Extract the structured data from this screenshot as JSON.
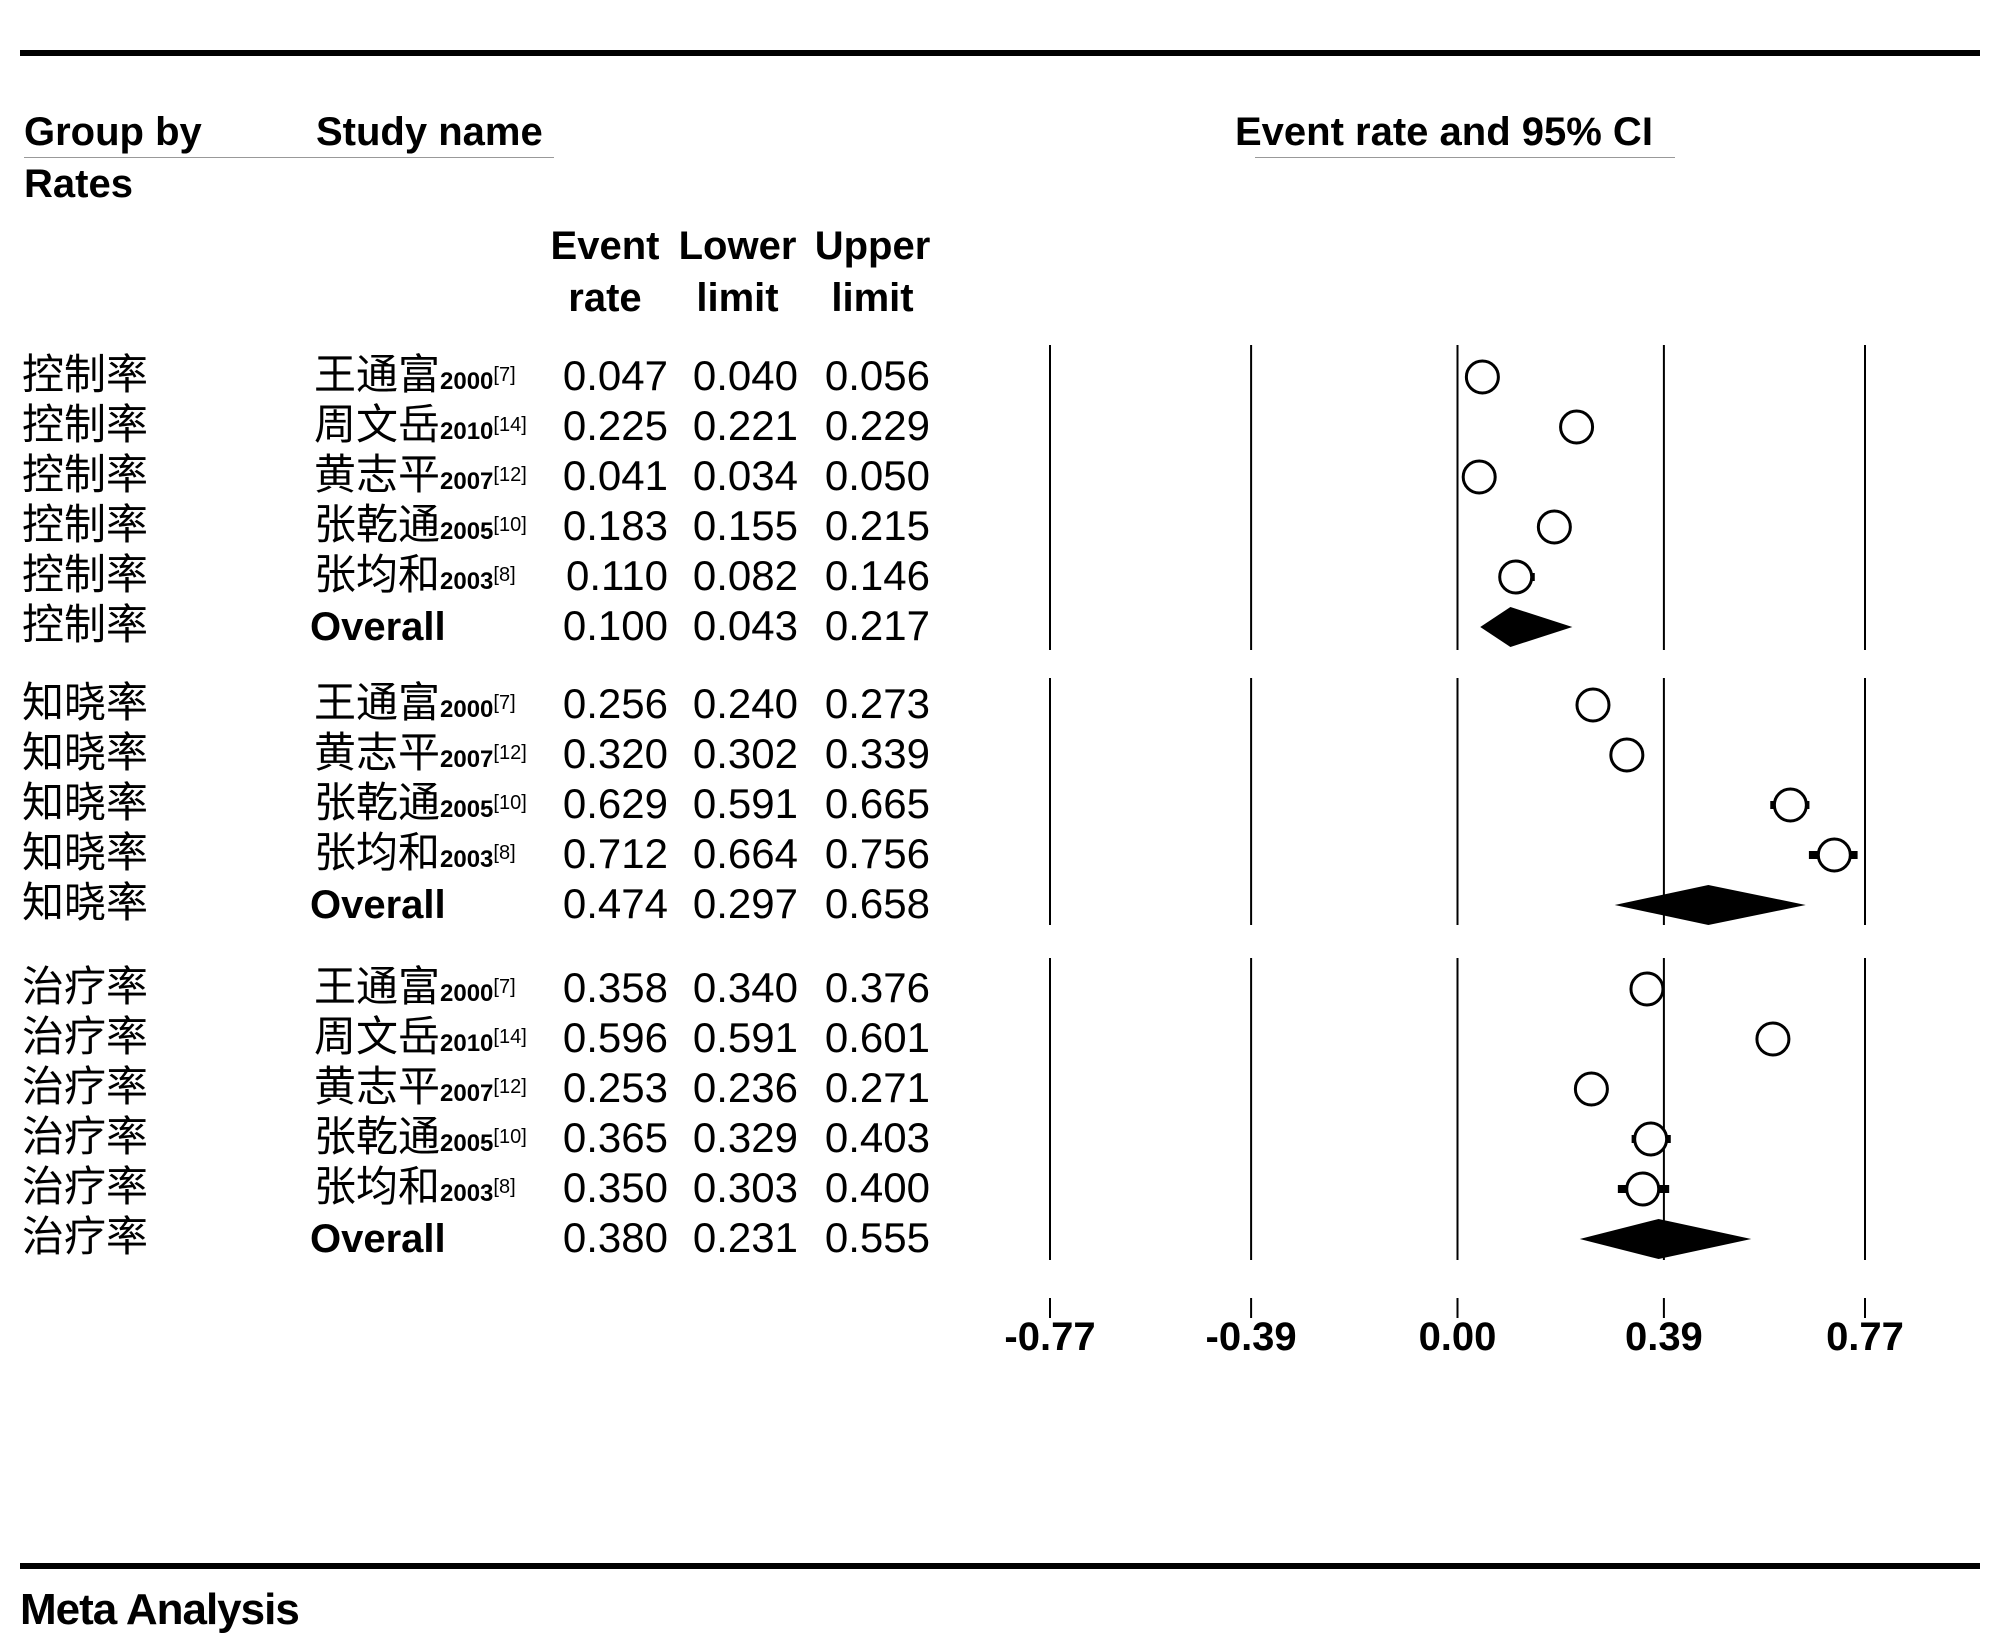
{
  "headers": {
    "group_line1": "Group by",
    "group_line2": "Rates",
    "study": "Study name",
    "plot": "Event rate and 95% CI",
    "col_event": [
      "Event",
      "rate"
    ],
    "col_lower": [
      "Lower",
      "limit"
    ],
    "col_upper": [
      "Upper",
      "limit"
    ]
  },
  "footer": "Meta Analysis",
  "chart_data": {
    "type": "forest",
    "xlim": [
      -0.77,
      0.77
    ],
    "xticks": [
      "-0.77",
      "-0.39",
      "0.00",
      "0.39",
      "0.77"
    ],
    "tick_values": [
      -0.77,
      -0.39,
      0.0,
      0.39,
      0.77
    ],
    "groups": [
      {
        "name": "控制率",
        "rows": [
          {
            "group": "控制率",
            "study": "王通富",
            "year": "2000",
            "ref": "[7]",
            "rate": "0.047",
            "lower": "0.040",
            "upper": "0.056",
            "r": 0.047,
            "l": 0.04,
            "u": 0.056,
            "overall": false
          },
          {
            "group": "控制率",
            "study": "周文岳",
            "year": "2010",
            "ref": "[14]",
            "rate": "0.225",
            "lower": "0.221",
            "upper": "0.229",
            "r": 0.225,
            "l": 0.221,
            "u": 0.229,
            "overall": false
          },
          {
            "group": "控制率",
            "study": "黄志平",
            "year": "2007",
            "ref": "[12]",
            "rate": "0.041",
            "lower": "0.034",
            "upper": "0.050",
            "r": 0.041,
            "l": 0.034,
            "u": 0.05,
            "overall": false
          },
          {
            "group": "控制率",
            "study": "张乾通",
            "year": "2005",
            "ref": "[10]",
            "rate": "0.183",
            "lower": "0.155",
            "upper": "0.215",
            "r": 0.183,
            "l": 0.155,
            "u": 0.215,
            "overall": false
          },
          {
            "group": "控制率",
            "study": "张均和",
            "year": "2003",
            "ref": "[8]",
            "rate": "0.110",
            "lower": "0.082",
            "upper": "0.146",
            "r": 0.11,
            "l": 0.082,
            "u": 0.146,
            "overall": false
          },
          {
            "group": "控制率",
            "study": "Overall",
            "year": "",
            "ref": "",
            "rate": "0.100",
            "lower": "0.043",
            "upper": "0.217",
            "r": 0.1,
            "l": 0.043,
            "u": 0.217,
            "overall": true
          }
        ]
      },
      {
        "name": "知晓率",
        "rows": [
          {
            "group": "知晓率",
            "study": "王通富",
            "year": "2000",
            "ref": "[7]",
            "rate": "0.256",
            "lower": "0.240",
            "upper": "0.273",
            "r": 0.256,
            "l": 0.24,
            "u": 0.273,
            "overall": false
          },
          {
            "group": "知晓率",
            "study": "黄志平",
            "year": "2007",
            "ref": "[12]",
            "rate": "0.320",
            "lower": "0.302",
            "upper": "0.339",
            "r": 0.32,
            "l": 0.302,
            "u": 0.339,
            "overall": false
          },
          {
            "group": "知晓率",
            "study": "张乾通",
            "year": "2005",
            "ref": "[10]",
            "rate": "0.629",
            "lower": "0.591",
            "upper": "0.665",
            "r": 0.629,
            "l": 0.591,
            "u": 0.665,
            "overall": false
          },
          {
            "group": "知晓率",
            "study": "张均和",
            "year": "2003",
            "ref": "[8]",
            "rate": "0.712",
            "lower": "0.664",
            "upper": "0.756",
            "r": 0.712,
            "l": 0.664,
            "u": 0.756,
            "overall": false
          },
          {
            "group": "知晓率",
            "study": "Overall",
            "year": "",
            "ref": "",
            "rate": "0.474",
            "lower": "0.297",
            "upper": "0.658",
            "r": 0.474,
            "l": 0.297,
            "u": 0.658,
            "overall": true
          }
        ]
      },
      {
        "name": "治疗率",
        "rows": [
          {
            "group": "治疗率",
            "study": "王通富",
            "year": "2000",
            "ref": "[7]",
            "rate": "0.358",
            "lower": "0.340",
            "upper": "0.376",
            "r": 0.358,
            "l": 0.34,
            "u": 0.376,
            "overall": false
          },
          {
            "group": "治疗率",
            "study": "周文岳",
            "year": "2010",
            "ref": "[14]",
            "rate": "0.596",
            "lower": "0.591",
            "upper": "0.601",
            "r": 0.596,
            "l": 0.591,
            "u": 0.601,
            "overall": false
          },
          {
            "group": "治疗率",
            "study": "黄志平",
            "year": "2007",
            "ref": "[12]",
            "rate": "0.253",
            "lower": "0.236",
            "upper": "0.271",
            "r": 0.253,
            "l": 0.236,
            "u": 0.271,
            "overall": false
          },
          {
            "group": "治疗率",
            "study": "张乾通",
            "year": "2005",
            "ref": "[10]",
            "rate": "0.365",
            "lower": "0.329",
            "upper": "0.403",
            "r": 0.365,
            "l": 0.329,
            "u": 0.403,
            "overall": false
          },
          {
            "group": "治疗率",
            "study": "张均和",
            "year": "2003",
            "ref": "[8]",
            "rate": "0.350",
            "lower": "0.303",
            "upper": "0.400",
            "r": 0.35,
            "l": 0.303,
            "u": 0.4,
            "overall": false
          },
          {
            "group": "治疗率",
            "study": "Overall",
            "year": "",
            "ref": "",
            "rate": "0.380",
            "lower": "0.231",
            "upper": "0.555",
            "r": 0.38,
            "l": 0.231,
            "u": 0.555,
            "overall": true
          }
        ]
      }
    ]
  }
}
